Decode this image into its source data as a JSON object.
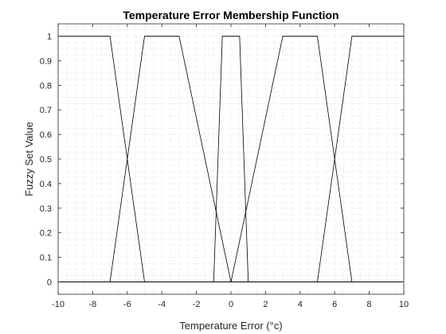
{
  "chart_data": {
    "type": "line",
    "title": "Temperature Error Membership Function",
    "xlabel": "Temperature Error (°c)",
    "ylabel": "Fuzzy Set Value",
    "xlim": [
      -10,
      10
    ],
    "ylim": [
      -0.05,
      1.05
    ],
    "xticks": [
      -10,
      -8,
      -6,
      -4,
      -2,
      0,
      2,
      4,
      6,
      8,
      10
    ],
    "yticks": [
      0,
      0.1,
      0.2,
      0.3,
      0.4,
      0.5,
      0.6,
      0.7,
      0.8,
      0.9,
      1
    ],
    "grid": "minor-dotted",
    "line_color": "#000000",
    "series": [
      {
        "x": [
          -10,
          -7,
          -5,
          10
        ],
        "y": [
          1,
          1,
          0,
          0
        ]
      },
      {
        "x": [
          -10,
          -7,
          -5,
          -3,
          0,
          10
        ],
        "y": [
          0,
          0,
          1,
          1,
          0,
          0
        ]
      },
      {
        "x": [
          -10,
          -1,
          -0.5,
          0.5,
          1,
          10
        ],
        "y": [
          0,
          0,
          1,
          1,
          0,
          0
        ]
      },
      {
        "x": [
          -10,
          0,
          3,
          5,
          7,
          10
        ],
        "y": [
          0,
          0,
          1,
          1,
          0,
          0
        ]
      },
      {
        "x": [
          -10,
          5,
          7,
          10
        ],
        "y": [
          0,
          0,
          1,
          1
        ]
      }
    ]
  }
}
